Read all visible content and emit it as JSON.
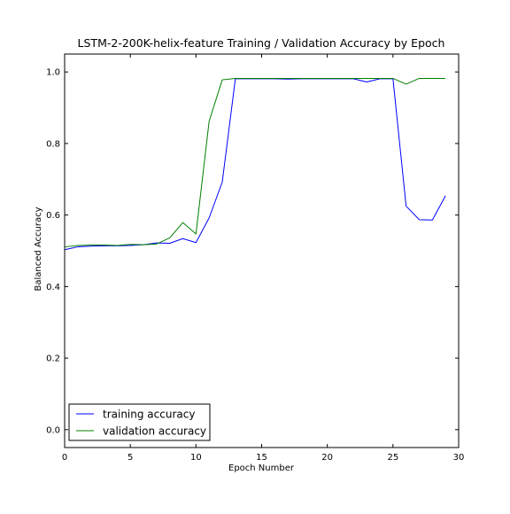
{
  "chart_data": {
    "type": "line",
    "title": "LSTM-2-200K-helix-feature Training / Validation Accuracy by Epoch",
    "xlabel": "Epoch Number",
    "ylabel": "Balanced Accuracy",
    "xlim": [
      0,
      30
    ],
    "ylim": [
      -0.05,
      1.05
    ],
    "xticks": [
      0,
      5,
      10,
      15,
      20,
      25,
      30
    ],
    "yticks": [
      0.0,
      0.2,
      0.4,
      0.6,
      0.8,
      1.0
    ],
    "xtick_labels": [
      "0",
      "5",
      "10",
      "15",
      "20",
      "25",
      "30"
    ],
    "ytick_labels": [
      "0.0",
      "0.2",
      "0.4",
      "0.6",
      "0.8",
      "1.0"
    ],
    "grid": false,
    "legend_position": "lower-left",
    "x": [
      0,
      1,
      2,
      3,
      4,
      5,
      6,
      7,
      8,
      9,
      10,
      11,
      12,
      13,
      14,
      15,
      16,
      17,
      18,
      19,
      20,
      21,
      22,
      23,
      24,
      25,
      26,
      27,
      28,
      29
    ],
    "series": [
      {
        "name": "training accuracy",
        "color": "#0000ff",
        "values": [
          0.503,
          0.511,
          0.513,
          0.514,
          0.514,
          0.515,
          0.517,
          0.522,
          0.521,
          0.534,
          0.523,
          0.592,
          0.692,
          0.981,
          0.981,
          0.981,
          0.981,
          0.98,
          0.981,
          0.981,
          0.981,
          0.981,
          0.981,
          0.972,
          0.981,
          0.981,
          0.625,
          0.587,
          0.586,
          0.654
        ]
      },
      {
        "name": "validation accuracy",
        "color": "#008000",
        "values": [
          0.511,
          0.515,
          0.516,
          0.516,
          0.515,
          0.518,
          0.517,
          0.519,
          0.536,
          0.579,
          0.547,
          0.862,
          0.978,
          0.982,
          0.982,
          0.982,
          0.982,
          0.982,
          0.982,
          0.982,
          0.982,
          0.982,
          0.982,
          0.982,
          0.982,
          0.982,
          0.966,
          0.982,
          0.982,
          0.982
        ]
      }
    ]
  }
}
